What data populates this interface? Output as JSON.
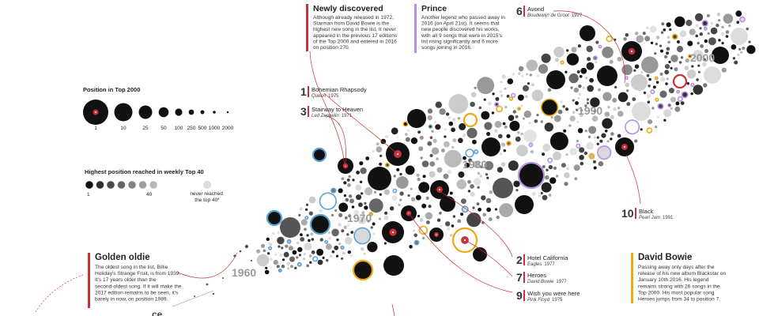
{
  "colors": {
    "accent_red": "#c8323c",
    "blue": "#5aa3d8",
    "orange": "#f0a814",
    "purple": "#b98ee6",
    "dark": "#111111",
    "mid": "#777777",
    "light": "#d9d9d9",
    "decade_label": "#9a9a9a"
  },
  "legend": {
    "position_title": "Position in Top 2000",
    "position_ticks": [
      "1",
      "10",
      "25",
      "50",
      "100",
      "250",
      "500",
      "1000",
      "2000"
    ],
    "weekly_title": "Highest position reached in weekly Top 40",
    "weekly_ticks": [
      "1",
      "40"
    ],
    "never_reached": "never reached the top 40*"
  },
  "annotations": {
    "newly": {
      "title": "Newly discovered",
      "lines": [
        "Although already released in 1972,",
        "Starman from David Bowie is the",
        "highest new song in the list. It never",
        "appeared in the previous 17 editions",
        "of the Top 2000 and entered in 2016",
        "on position 270."
      ]
    },
    "prince": {
      "title": "Prince",
      "lines": [
        "Another legend who passed away in",
        "2016 (on April 21st). It seems that",
        "new people discovered his works,",
        "with all 9 songs that were in 2015's",
        "list rising significantly and 6 more",
        "songs joining in 2016."
      ]
    },
    "golden": {
      "title": "Golden oldie",
      "lines": [
        "The oldest song in the list, Billie",
        "Holiday's Strange Fruit, is from 1939.",
        "It's 17 years older than the",
        "second-oldest song. If it will make the",
        "2017 edition remains to be seen, it's",
        "barely in now, on position 1989."
      ]
    },
    "bowie": {
      "title": "David Bowie",
      "lines": [
        "Passing away only days after the",
        "release of his new album Blackstar on",
        "January 10th 2016. His legend",
        "remains strong with 26 songs in the",
        "Top 2000. His most popular song",
        "Heroes jumps from 34 to position 7."
      ]
    }
  },
  "ranked_songs": [
    {
      "rank": "1",
      "title": "Bohemian Rhapsody",
      "artist": "Queen",
      "year": "1975"
    },
    {
      "rank": "3",
      "title": "Stairway to Heaven",
      "artist": "Led Zeppelin",
      "year": "1971"
    },
    {
      "rank": "6",
      "title": "Avond",
      "artist": "Boudewijn de Groot",
      "year": "1997"
    },
    {
      "rank": "10",
      "title": "Black",
      "artist": "Pearl Jam",
      "year": "1991"
    },
    {
      "rank": "2",
      "title": "Hotel California",
      "artist": "Eagles",
      "year": "1977"
    },
    {
      "rank": "7",
      "title": "Heroes",
      "artist": "David Bowie",
      "year": "1977"
    },
    {
      "rank": "9",
      "title": "Wish you were here",
      "artist": "Pink Floyd",
      "year": "1975"
    }
  ],
  "decade_labels": [
    "1960",
    "1970",
    "1980",
    "1990",
    "2000"
  ],
  "chart_data": {
    "type": "scatter",
    "title": "",
    "xlabel": "",
    "ylabel": "",
    "highlighted_songs": [
      {
        "rank": 1,
        "title": "Bohemian Rhapsody",
        "artist": "Queen",
        "year": 1975
      },
      {
        "rank": 2,
        "title": "Hotel California",
        "artist": "Eagles",
        "year": 1977
      },
      {
        "rank": 3,
        "title": "Stairway to Heaven",
        "artist": "Led Zeppelin",
        "year": 1971
      },
      {
        "rank": 6,
        "title": "Avond",
        "artist": "Boudewijn de Groot",
        "year": 1997
      },
      {
        "rank": 7,
        "title": "Heroes",
        "artist": "David Bowie",
        "year": 1977
      },
      {
        "rank": 9,
        "title": "Wish you were here",
        "artist": "Pink Floyd",
        "year": 1975
      },
      {
        "rank": 10,
        "title": "Black",
        "artist": "Pearl Jam",
        "year": 1991
      }
    ],
    "size_legend_positions": [
      1,
      10,
      25,
      50,
      100,
      250,
      500,
      1000,
      2000
    ],
    "color_legend_range": [
      1,
      40
    ],
    "decades": [
      "1960",
      "1970",
      "1980",
      "1990",
      "2000"
    ]
  }
}
